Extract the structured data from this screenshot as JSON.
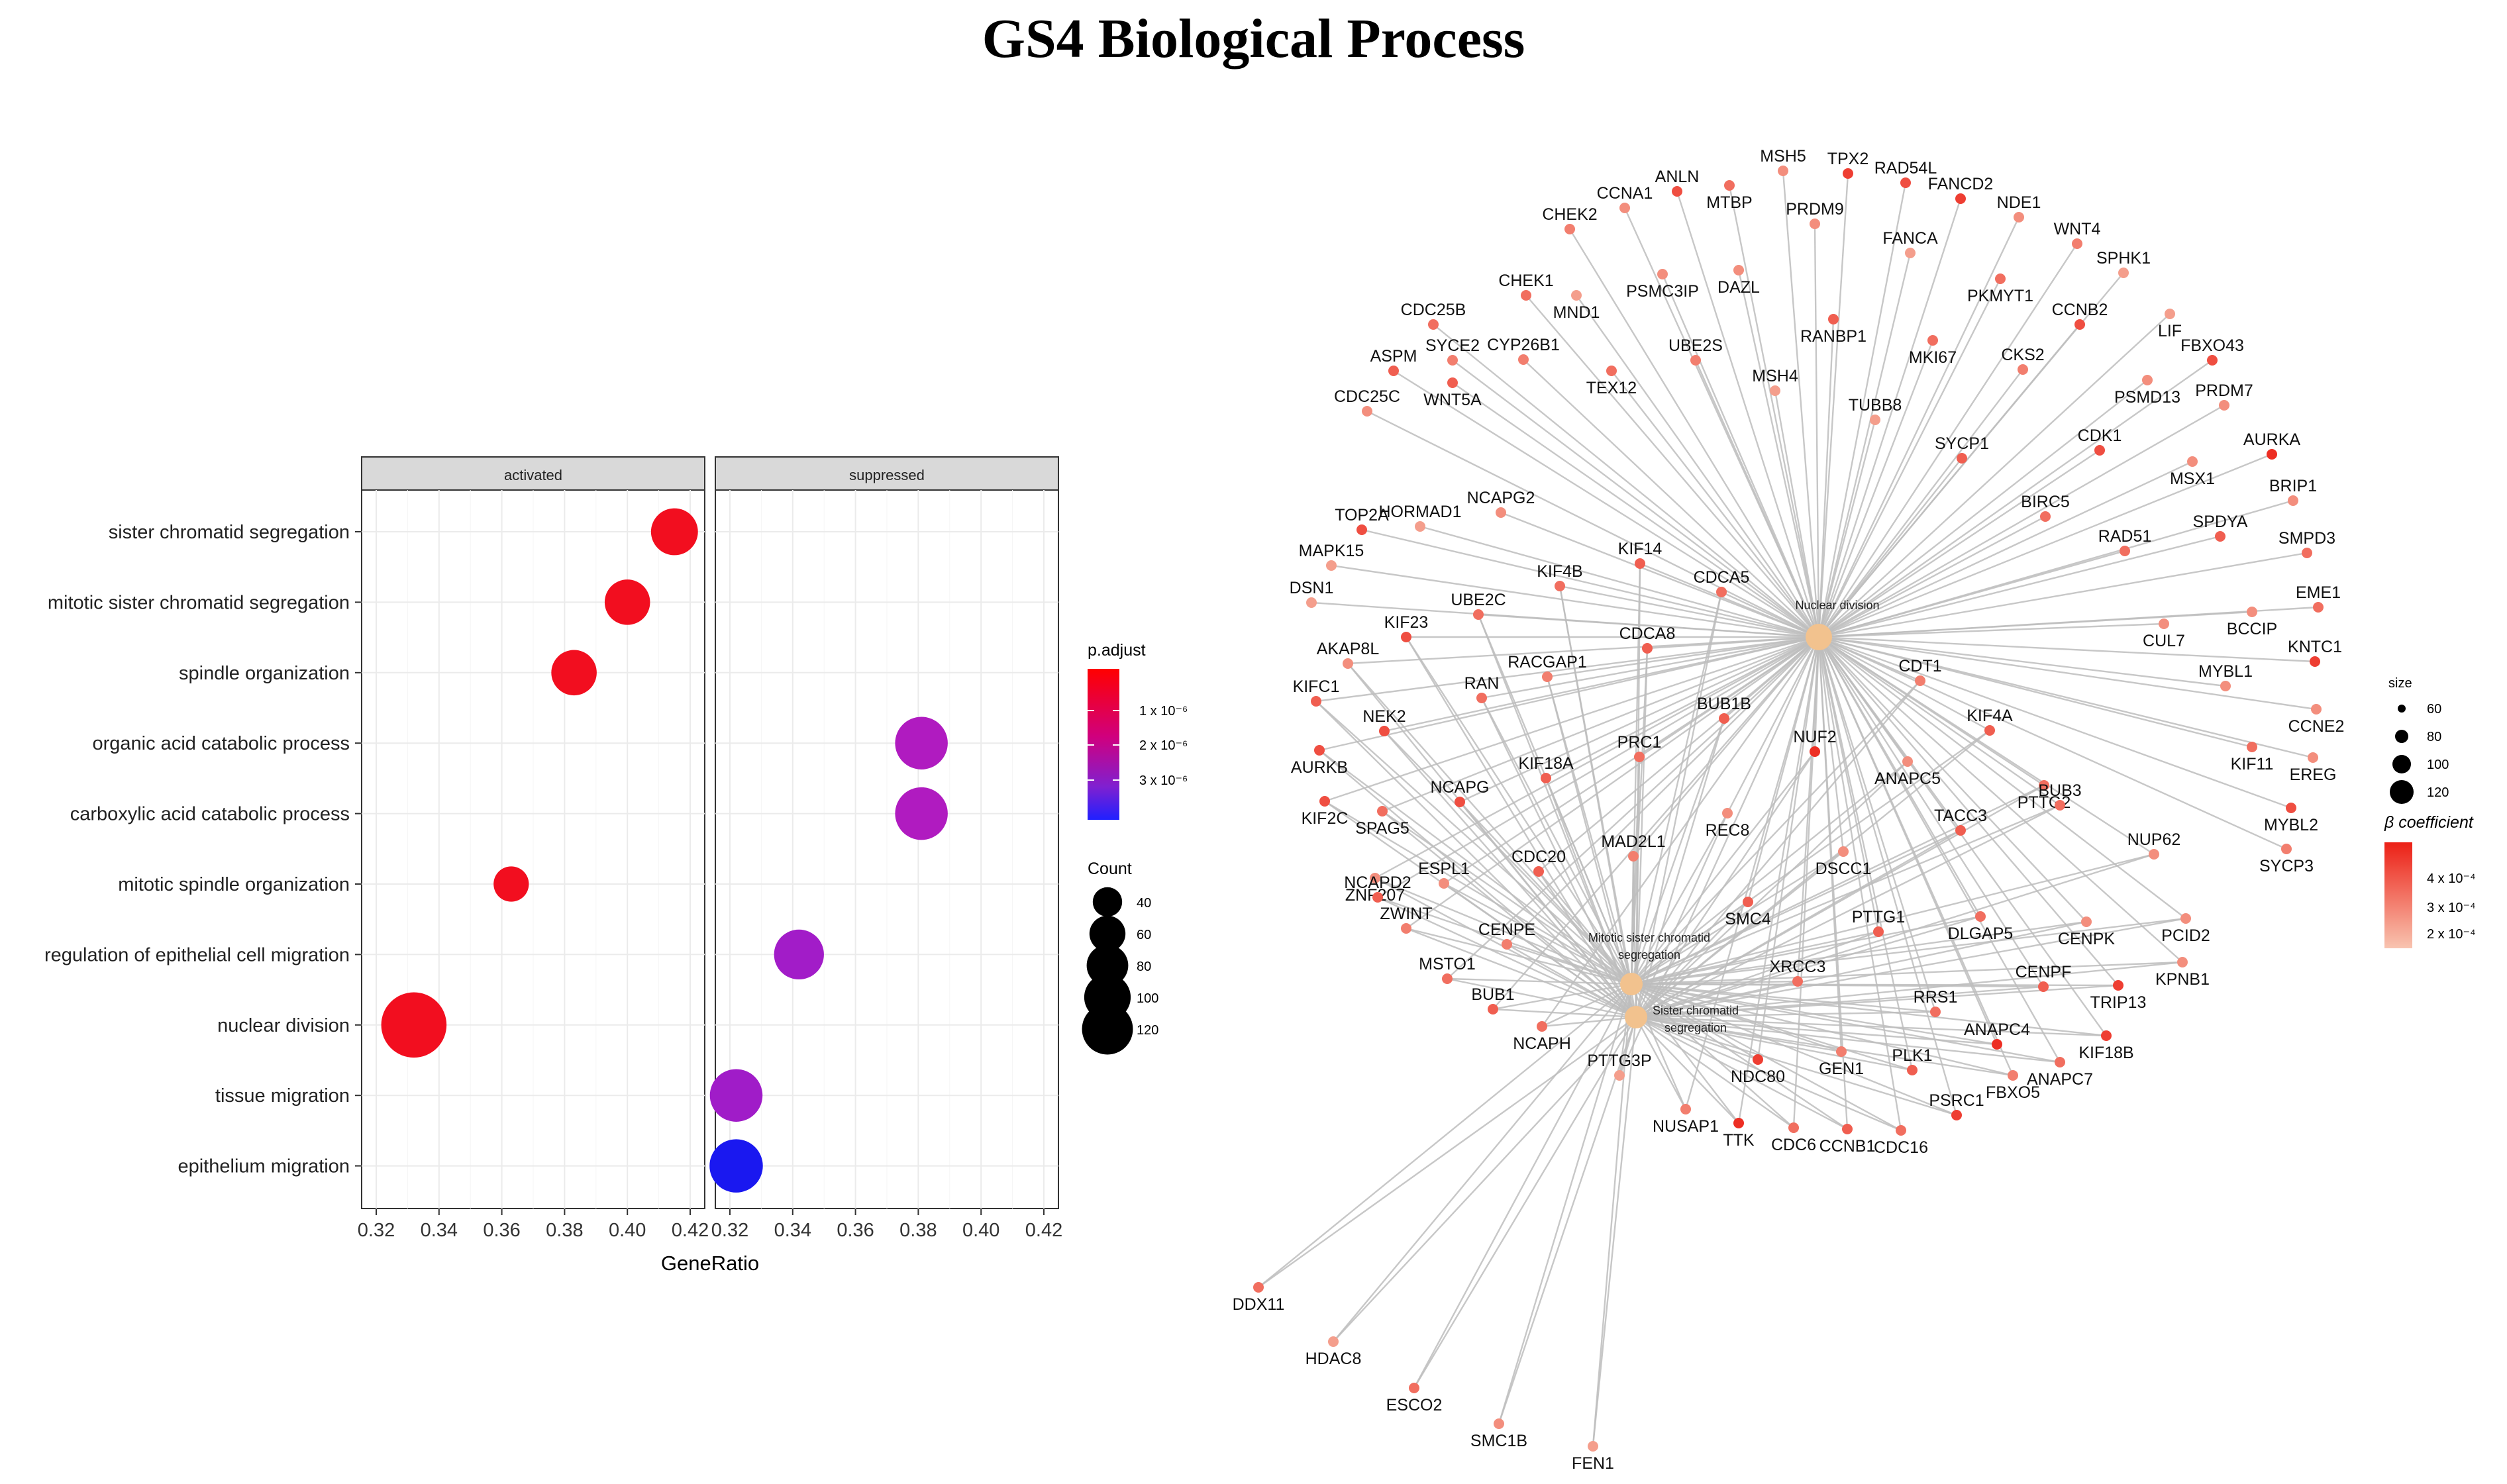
{
  "title": "GS4 Biological Process",
  "chart_data": [
    {
      "type": "scatter",
      "subtype": "dotplot",
      "facets": [
        "activated",
        "suppressed"
      ],
      "xlabel": "GeneRatio",
      "xlim": [
        0.32,
        0.42
      ],
      "xticks": [
        "0.32",
        "0.34",
        "0.36",
        "0.38",
        "0.40",
        "0.42"
      ],
      "categories": [
        "sister chromatid segregation",
        "mitotic sister chromatid segregation",
        "spindle organization",
        "organic acid catabolic process",
        "carboxylic acid catabolic process",
        "mitotic spindle organization",
        "regulation of epithelial cell migration",
        "nuclear division",
        "tissue migration",
        "epithelium migration"
      ],
      "points": [
        {
          "category": "sister chromatid segregation",
          "facet": "activated",
          "generatio": 0.415,
          "count": 62,
          "p": 1e-06,
          "color": "#f20e1f"
        },
        {
          "category": "mitotic sister chromatid segregation",
          "facet": "activated",
          "generatio": 0.4,
          "count": 58,
          "p": 1e-06,
          "color": "#f20e1f"
        },
        {
          "category": "spindle organization",
          "facet": "activated",
          "generatio": 0.383,
          "count": 58,
          "p": 1e-06,
          "color": "#f20e1f"
        },
        {
          "category": "organic acid catabolic process",
          "facet": "suppressed",
          "generatio": 0.381,
          "count": 78,
          "p": 2.4e-06,
          "color": "#b01bc0"
        },
        {
          "category": "carboxylic acid catabolic process",
          "facet": "suppressed",
          "generatio": 0.381,
          "count": 78,
          "p": 2.4e-06,
          "color": "#b01bc0"
        },
        {
          "category": "mitotic spindle organization",
          "facet": "activated",
          "generatio": 0.363,
          "count": 35,
          "p": 1e-06,
          "color": "#f20e1f"
        },
        {
          "category": "regulation of epithelial cell migration",
          "facet": "suppressed",
          "generatio": 0.342,
          "count": 70,
          "p": 2.6e-06,
          "color": "#a21cc8"
        },
        {
          "category": "nuclear division",
          "facet": "activated",
          "generatio": 0.332,
          "count": 120,
          "p": 1e-06,
          "color": "#f20e1f"
        },
        {
          "category": "tissue migration",
          "facet": "suppressed",
          "generatio": 0.322,
          "count": 78,
          "p": 2.7e-06,
          "color": "#a01cc8"
        },
        {
          "category": "epithelium migration",
          "facet": "suppressed",
          "generatio": 0.322,
          "count": 80,
          "p": 3.8e-06,
          "color": "#1a18f0"
        }
      ],
      "legend_color": {
        "title": "p.adjust",
        "labels": [
          "1 x 10⁻⁶",
          "2 x 10⁻⁶",
          "3 x 10⁻⁶"
        ],
        "colors": [
          "#ff0000",
          "#c000a0",
          "#2020ff"
        ]
      },
      "legend_size": {
        "title": "Count",
        "values": [
          40,
          60,
          80,
          100,
          120
        ]
      }
    },
    {
      "type": "network",
      "subtype": "cnetplot",
      "hubs": [
        "Nuclear division",
        "Mitotic sister chromatid segregation",
        "Sister chromatid segregation"
      ],
      "legend_size": {
        "title": "size",
        "values": [
          60,
          80,
          100,
          120
        ]
      },
      "legend_color": {
        "title": "β coefficient",
        "labels": [
          "4 x 10⁻⁴",
          "3 x 10⁻⁴",
          "2 x 10⁻⁴"
        ]
      },
      "genes": [
        {
          "name": "MSH5",
          "level": 0.3
        },
        {
          "name": "TPX2",
          "level": 0.8
        },
        {
          "name": "RAD54L",
          "level": 0.7
        },
        {
          "name": "ANLN",
          "level": 0.7
        },
        {
          "name": "MTBP",
          "level": 0.5
        },
        {
          "name": "PRDM9",
          "level": 0.3
        },
        {
          "name": "FANCD2",
          "level": 0.8
        },
        {
          "name": "NDE1",
          "level": 0.3
        },
        {
          "name": "CCNA1",
          "level": 0.3
        },
        {
          "name": "FANCA",
          "level": 0.2
        },
        {
          "name": "CHEK2",
          "level": 0.4
        },
        {
          "name": "WNT4",
          "level": 0.4
        },
        {
          "name": "SPHK1",
          "level": 0.2
        },
        {
          "name": "CHEK1",
          "level": 0.5
        },
        {
          "name": "PSMC3IP",
          "level": 0.3
        },
        {
          "name": "DAZL",
          "level": 0.3
        },
        {
          "name": "PKMYT1",
          "level": 0.5
        },
        {
          "name": "MND1",
          "level": 0.2
        },
        {
          "name": "CCNB2",
          "level": 0.7
        },
        {
          "name": "LIF",
          "level": 0.2
        },
        {
          "name": "CDC25B",
          "level": 0.5
        },
        {
          "name": "RANBP1",
          "level": 0.6
        },
        {
          "name": "FBXO43",
          "level": 0.7
        },
        {
          "name": "SYCE2",
          "level": 0.4
        },
        {
          "name": "CYP26B1",
          "level": 0.4
        },
        {
          "name": "UBE2S",
          "level": 0.4
        },
        {
          "name": "MKI67",
          "level": 0.5
        },
        {
          "name": "ASPM",
          "level": 0.6
        },
        {
          "name": "TEX12",
          "level": 0.5
        },
        {
          "name": "CKS2",
          "level": 0.4
        },
        {
          "name": "PRDM7",
          "level": 0.3
        },
        {
          "name": "PSMD13",
          "level": 0.3
        },
        {
          "name": "WNT5A",
          "level": 0.6
        },
        {
          "name": "MSH4",
          "level": 0.2
        },
        {
          "name": "CDC25C",
          "level": 0.3
        },
        {
          "name": "TUBB8",
          "level": 0.2
        },
        {
          "name": "CDK1",
          "level": 0.7
        },
        {
          "name": "AURKA",
          "level": 0.9
        },
        {
          "name": "SYCP1",
          "level": 0.6
        },
        {
          "name": "MSX1",
          "level": 0.3
        },
        {
          "name": "BRIP1",
          "level": 0.3
        },
        {
          "name": "NCAPG2",
          "level": 0.3
        },
        {
          "name": "BIRC5",
          "level": 0.5
        },
        {
          "name": "SPDYA",
          "level": 0.6
        },
        {
          "name": "TOP2A",
          "level": 0.7
        },
        {
          "name": "HORMAD1",
          "level": 0.2
        },
        {
          "name": "KIF14",
          "level": 0.6
        },
        {
          "name": "RAD51",
          "level": 0.5
        },
        {
          "name": "SMPD3",
          "level": 0.5
        },
        {
          "name": "CDCA5",
          "level": 0.5
        },
        {
          "name": "MAPK15",
          "level": 0.2
        },
        {
          "name": "KIF4B",
          "level": 0.5
        },
        {
          "name": "EME1",
          "level": 0.5
        },
        {
          "name": "DSN1",
          "level": 0.2
        },
        {
          "name": "Nuclear division",
          "level": 0
        },
        {
          "name": "CUL7",
          "level": 0.3
        },
        {
          "name": "BCCIP",
          "level": 0.3
        },
        {
          "name": "UBE2C",
          "level": 0.5
        },
        {
          "name": "KIF23",
          "level": 0.7
        },
        {
          "name": "CDCA8",
          "level": 0.6
        },
        {
          "name": "KNTC1",
          "level": 0.8
        },
        {
          "name": "AKAP8L",
          "level": 0.3
        },
        {
          "name": "MYBL1",
          "level": 0.3
        },
        {
          "name": "CDT1",
          "level": 0.4
        },
        {
          "name": "RAN",
          "level": 0.5
        },
        {
          "name": "RACGAP1",
          "level": 0.4
        },
        {
          "name": "BUB1B",
          "level": 0.6
        },
        {
          "name": "KIFC1",
          "level": 0.6
        },
        {
          "name": "NEK2",
          "level": 0.7
        },
        {
          "name": "CCNE2",
          "level": 0.3
        },
        {
          "name": "KIF11",
          "level": 0.5
        },
        {
          "name": "PRC1",
          "level": 0.5
        },
        {
          "name": "KIF4A",
          "level": 0.6
        },
        {
          "name": "AURKB",
          "level": 0.7
        },
        {
          "name": "KIF18A",
          "level": 0.6
        },
        {
          "name": "NUF2",
          "level": 0.9
        },
        {
          "name": "EREG",
          "level": 0.3
        },
        {
          "name": "KIF2C",
          "level": 0.7
        },
        {
          "name": "NCAPG",
          "level": 0.7
        },
        {
          "name": "ANAPC5",
          "level": 0.3
        },
        {
          "name": "PTTG2",
          "level": 0.5
        },
        {
          "name": "REC8",
          "level": 0.3
        },
        {
          "name": "MYBL2",
          "level": 0.7
        },
        {
          "name": "SPAG5",
          "level": 0.5
        },
        {
          "name": "TACC3",
          "level": 0.6
        },
        {
          "name": "BUB3",
          "level": 0.5
        },
        {
          "name": "NUP62",
          "level": 0.3
        },
        {
          "name": "MAD2L1",
          "level": 0.4
        },
        {
          "name": "DSCC1",
          "level": 0.3
        },
        {
          "name": "SYCP3",
          "level": 0.4
        },
        {
          "name": "ZNF207",
          "level": 0.3
        },
        {
          "name": "ESPL1",
          "level": 0.3
        },
        {
          "name": "CDC20",
          "level": 0.6
        },
        {
          "name": "SMC4",
          "level": 0.6
        },
        {
          "name": "NCAPD2",
          "level": 0.6
        },
        {
          "name": "PTTG1",
          "level": 0.6
        },
        {
          "name": "DLGAP5",
          "level": 0.5
        },
        {
          "name": "CENPK",
          "level": 0.3
        },
        {
          "name": "PCID2",
          "level": 0.3
        },
        {
          "name": "ZWINT",
          "level": 0.4
        },
        {
          "name": "CENPE",
          "level": 0.4
        },
        {
          "name": "Mitotic sister chromatid segregation",
          "level": 0
        },
        {
          "name": "KPNB1",
          "level": 0.3
        },
        {
          "name": "MSTO1",
          "level": 0.5
        },
        {
          "name": "XRCC3",
          "level": 0.5
        },
        {
          "name": "CENPF",
          "level": 0.6
        },
        {
          "name": "TRIP13",
          "level": 0.8
        },
        {
          "name": "BUB1",
          "level": 0.6
        },
        {
          "name": "RRS1",
          "level": 0.5
        },
        {
          "name": "Sister chromatid segregation",
          "level": 0
        },
        {
          "name": "ANAPC4",
          "level": 0.9
        },
        {
          "name": "KIF18B",
          "level": 0.8
        },
        {
          "name": "NCAPH",
          "level": 0.5
        },
        {
          "name": "PTTG3P",
          "level": 0.2
        },
        {
          "name": "ANAPC7",
          "level": 0.5
        },
        {
          "name": "GEN1",
          "level": 0.4
        },
        {
          "name": "PLK1",
          "level": 0.6
        },
        {
          "name": "NDC80",
          "level": 0.8
        },
        {
          "name": "FBXO5",
          "level": 0.4
        },
        {
          "name": "NUSAP1",
          "level": 0.4
        },
        {
          "name": "PSRC1",
          "level": 0.8
        },
        {
          "name": "TTK",
          "level": 0.9
        },
        {
          "name": "CCNB1",
          "level": 0.6
        },
        {
          "name": "CDC6",
          "level": 0.5
        },
        {
          "name": "CDC16",
          "level": 0.5
        },
        {
          "name": "DDX11",
          "level": 0.5
        },
        {
          "name": "HDAC8",
          "level": 0.2
        },
        {
          "name": "ESCO2",
          "level": 0.5
        },
        {
          "name": "SMC1B",
          "level": 0.3
        },
        {
          "name": "FEN1",
          "level": 0.2
        }
      ]
    }
  ]
}
